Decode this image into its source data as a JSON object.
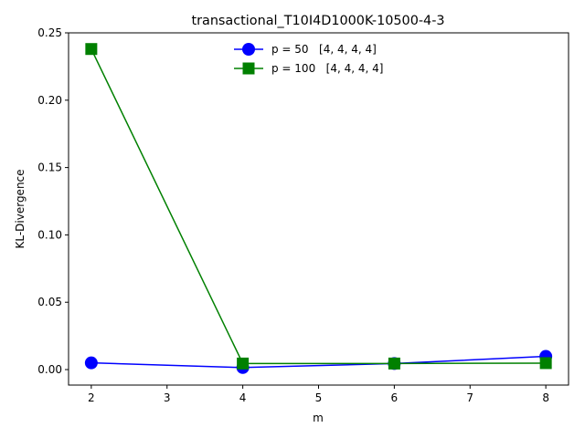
{
  "chart_data": {
    "type": "line",
    "title": "transactional_T10I4D1000K-10500-4-3",
    "xlabel": "m",
    "ylabel": "KL-Divergence",
    "xlim": [
      1.7,
      8.3
    ],
    "ylim": [
      -0.0115,
      0.25
    ],
    "xticks": [
      2,
      3,
      4,
      5,
      6,
      7,
      8
    ],
    "xtick_labels": [
      "2",
      "3",
      "4",
      "5",
      "6",
      "7",
      "8"
    ],
    "yticks": [
      0.0,
      0.05,
      0.1,
      0.15,
      0.2,
      0.25
    ],
    "ytick_labels": [
      "0.00",
      "0.05",
      "0.10",
      "0.15",
      "0.20",
      "0.25"
    ],
    "grid": false,
    "legend_position": "top-center",
    "x": [
      2,
      4,
      6,
      8
    ],
    "series": [
      {
        "name": "p = 50   [4, 4, 4, 4]",
        "color": "#0000ff",
        "marker": "circle",
        "values": [
          0.005,
          0.0015,
          0.0045,
          0.0098
        ]
      },
      {
        "name": "p = 100   [4, 4, 4, 4]",
        "color": "#008000",
        "marker": "square",
        "values": [
          0.238,
          0.0045,
          0.0045,
          0.0048
        ]
      }
    ]
  }
}
